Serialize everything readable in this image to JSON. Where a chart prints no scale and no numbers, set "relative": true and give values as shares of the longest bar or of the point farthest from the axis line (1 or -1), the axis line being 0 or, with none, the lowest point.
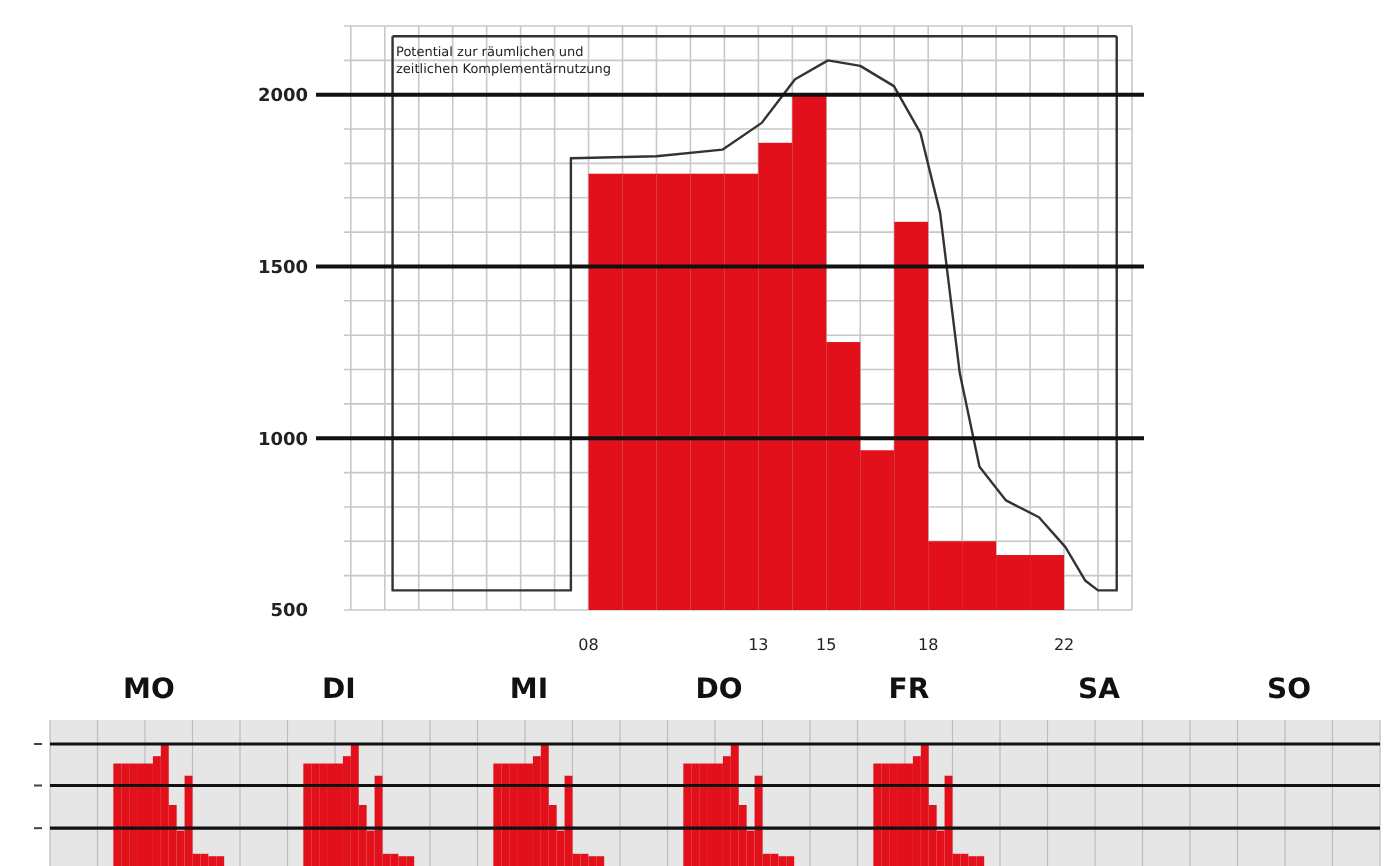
{
  "chart_data": [
    {
      "type": "bar",
      "xlim": [
        0.8,
        24
      ],
      "ylim": [
        500,
        2200
      ],
      "grid": true,
      "xticks": [
        {
          "value": 1,
          "label": null
        },
        {
          "value": 2,
          "label": null
        },
        {
          "value": 3,
          "label": null
        },
        {
          "value": 4,
          "label": null
        },
        {
          "value": 5,
          "label": null
        },
        {
          "value": 6,
          "label": null
        },
        {
          "value": 7,
          "label": null
        },
        {
          "value": 8,
          "label": "08"
        },
        {
          "value": 9,
          "label": null
        },
        {
          "value": 10,
          "label": null
        },
        {
          "value": 11,
          "label": null
        },
        {
          "value": 12,
          "label": null
        },
        13,
        {
          "value": 14,
          "label": null
        },
        15,
        {
          "value": 16,
          "label": null
        },
        {
          "value": 17,
          "label": null
        },
        18,
        {
          "value": 19,
          "label": null
        },
        {
          "value": 20,
          "label": null
        },
        {
          "value": 21,
          "label": null
        },
        22,
        {
          "value": 23,
          "label": null
        },
        {
          "value": 24,
          "label": null
        }
      ],
      "yticks": [
        500,
        {
          "value": 600,
          "label": null
        },
        {
          "value": 700,
          "label": null
        },
        {
          "value": 800,
          "label": null
        },
        {
          "value": 900,
          "label": null
        },
        1000,
        {
          "value": 1100,
          "label": null
        },
        {
          "value": 1200,
          "label": null
        },
        {
          "value": 1300,
          "label": null
        },
        {
          "value": 1400,
          "label": null
        },
        1500,
        {
          "value": 1600,
          "label": null
        },
        {
          "value": 1700,
          "label": null
        },
        {
          "value": 1800,
          "label": null
        },
        {
          "value": 1900,
          "label": null
        },
        2000,
        {
          "value": 2100,
          "label": null
        },
        {
          "value": 2200,
          "label": null
        }
      ],
      "annotations": [
        "Potential zur räumlichen und zeitlichen Komplementärnutzung"
      ],
      "series": [
        {
          "type": "bar",
          "color": "#e2101a",
          "x": [
            8.5,
            9.5,
            10.5,
            11.5,
            12.5,
            13.5,
            14.5,
            15.5,
            16.5,
            17.5,
            18.5,
            19.5,
            20.5,
            21.5
          ],
          "values": [
            1770,
            1770,
            1770,
            1770,
            1770,
            1860,
            2000,
            1280,
            965,
            1630,
            700,
            700,
            660,
            660
          ]
        },
        {
          "type": "line",
          "color": "#333333",
          "x": [
            2.23,
            2.23,
            7.48,
            7.48,
            10,
            11.94,
            13.1,
            14.08,
            15.05,
            16,
            16.99,
            17.77,
            18.35,
            18.93,
            19.51,
            20.29,
            21.26,
            22.04,
            22.62,
            23,
            23.55,
            23.55
          ],
          "values": [
            2170,
            557,
            557,
            1815,
            1821,
            1840,
            1918,
            2045,
            2100,
            2084,
            2025,
            1889,
            1656,
            1189,
            917,
            819,
            770,
            683,
            586,
            557,
            557,
            2170
          ]
        },
        {
          "type": "line",
          "color": "#333333",
          "x": [
            2.23,
            23.55
          ],
          "values": [
            2170,
            2170
          ]
        }
      ]
    },
    {
      "type": "bar",
      "relative": true,
      "tick_labels": "x",
      "color": "#e2101a",
      "grid": "x",
      "categories": [
        null,
        null,
        null,
        null,
        null,
        null,
        null,
        null,
        null,
        null,
        null,
        null,
        "MO",
        null,
        null,
        null,
        null,
        null,
        null,
        null,
        null,
        null,
        null,
        null,
        null,
        null,
        null,
        null,
        null,
        null,
        null,
        null,
        null,
        null,
        null,
        null,
        "DI",
        null,
        null,
        null,
        null,
        null,
        null,
        null,
        null,
        null,
        null,
        null,
        null,
        null,
        null,
        null,
        null,
        null,
        null,
        null,
        null,
        null,
        null,
        null,
        "MI",
        null,
        null,
        null,
        null,
        null,
        null,
        null,
        null,
        null,
        null,
        null,
        null,
        null,
        null,
        null,
        null,
        null,
        null,
        null,
        null,
        null,
        null,
        null,
        "DO",
        null,
        null,
        null,
        null,
        null,
        null,
        null,
        null,
        null,
        null,
        null,
        null,
        null,
        null,
        null,
        null,
        null,
        null,
        null,
        null,
        null,
        null,
        null,
        "FR",
        null,
        null,
        null,
        null,
        null,
        null,
        null,
        null,
        null,
        null,
        null,
        null,
        null,
        null,
        null,
        null,
        null,
        null,
        null,
        null,
        null,
        null,
        null,
        "SA",
        null,
        null,
        null,
        null,
        null,
        null,
        null,
        null,
        null,
        null,
        null,
        null,
        null,
        null,
        null,
        null,
        null,
        null,
        null,
        null,
        null,
        null,
        null,
        "SO",
        null,
        null,
        null,
        null,
        null,
        null,
        null,
        null,
        null,
        null,
        null
      ],
      "ref_lines": [
        {
          "axis": "y",
          "value": 1
        },
        {
          "axis": "y",
          "value": 0.66
        },
        {
          "axis": "y",
          "value": 0.31
        }
      ],
      "values": [
        null,
        null,
        null,
        null,
        null,
        null,
        null,
        null,
        0.84,
        0.84,
        0.84,
        0.84,
        0.84,
        0.9,
        1,
        0.5,
        0.29,
        0.74,
        0.1,
        0.1,
        0.08,
        0.08,
        null,
        null,
        null,
        null,
        null,
        null,
        null,
        null,
        null,
        null,
        0.84,
        0.84,
        0.84,
        0.84,
        0.84,
        0.9,
        1,
        0.5,
        0.29,
        0.74,
        0.1,
        0.1,
        0.08,
        0.08,
        null,
        null,
        null,
        null,
        null,
        null,
        null,
        null,
        null,
        null,
        0.84,
        0.84,
        0.84,
        0.84,
        0.84,
        0.9,
        1,
        0.5,
        0.29,
        0.74,
        0.1,
        0.1,
        0.08,
        0.08,
        null,
        null,
        null,
        null,
        null,
        null,
        null,
        null,
        null,
        null,
        0.84,
        0.84,
        0.84,
        0.84,
        0.84,
        0.9,
        1,
        0.5,
        0.29,
        0.74,
        0.1,
        0.1,
        0.08,
        0.08,
        null,
        null,
        null,
        null,
        null,
        null,
        null,
        null,
        null,
        null,
        0.84,
        0.84,
        0.84,
        0.84,
        0.84,
        0.9,
        1,
        0.5,
        0.29,
        0.74,
        0.1,
        0.1,
        0.08,
        0.08,
        null,
        null,
        null,
        null,
        null,
        null,
        null,
        null,
        null,
        null,
        null,
        null,
        null,
        null,
        null,
        null,
        null,
        null,
        null,
        null,
        null,
        null,
        null,
        null,
        null,
        null,
        null,
        null,
        null,
        null,
        null,
        null,
        null,
        null,
        null,
        null,
        null,
        null,
        null,
        null,
        null,
        null,
        null,
        null,
        null,
        null,
        null,
        null,
        null,
        null
      ]
    }
  ]
}
